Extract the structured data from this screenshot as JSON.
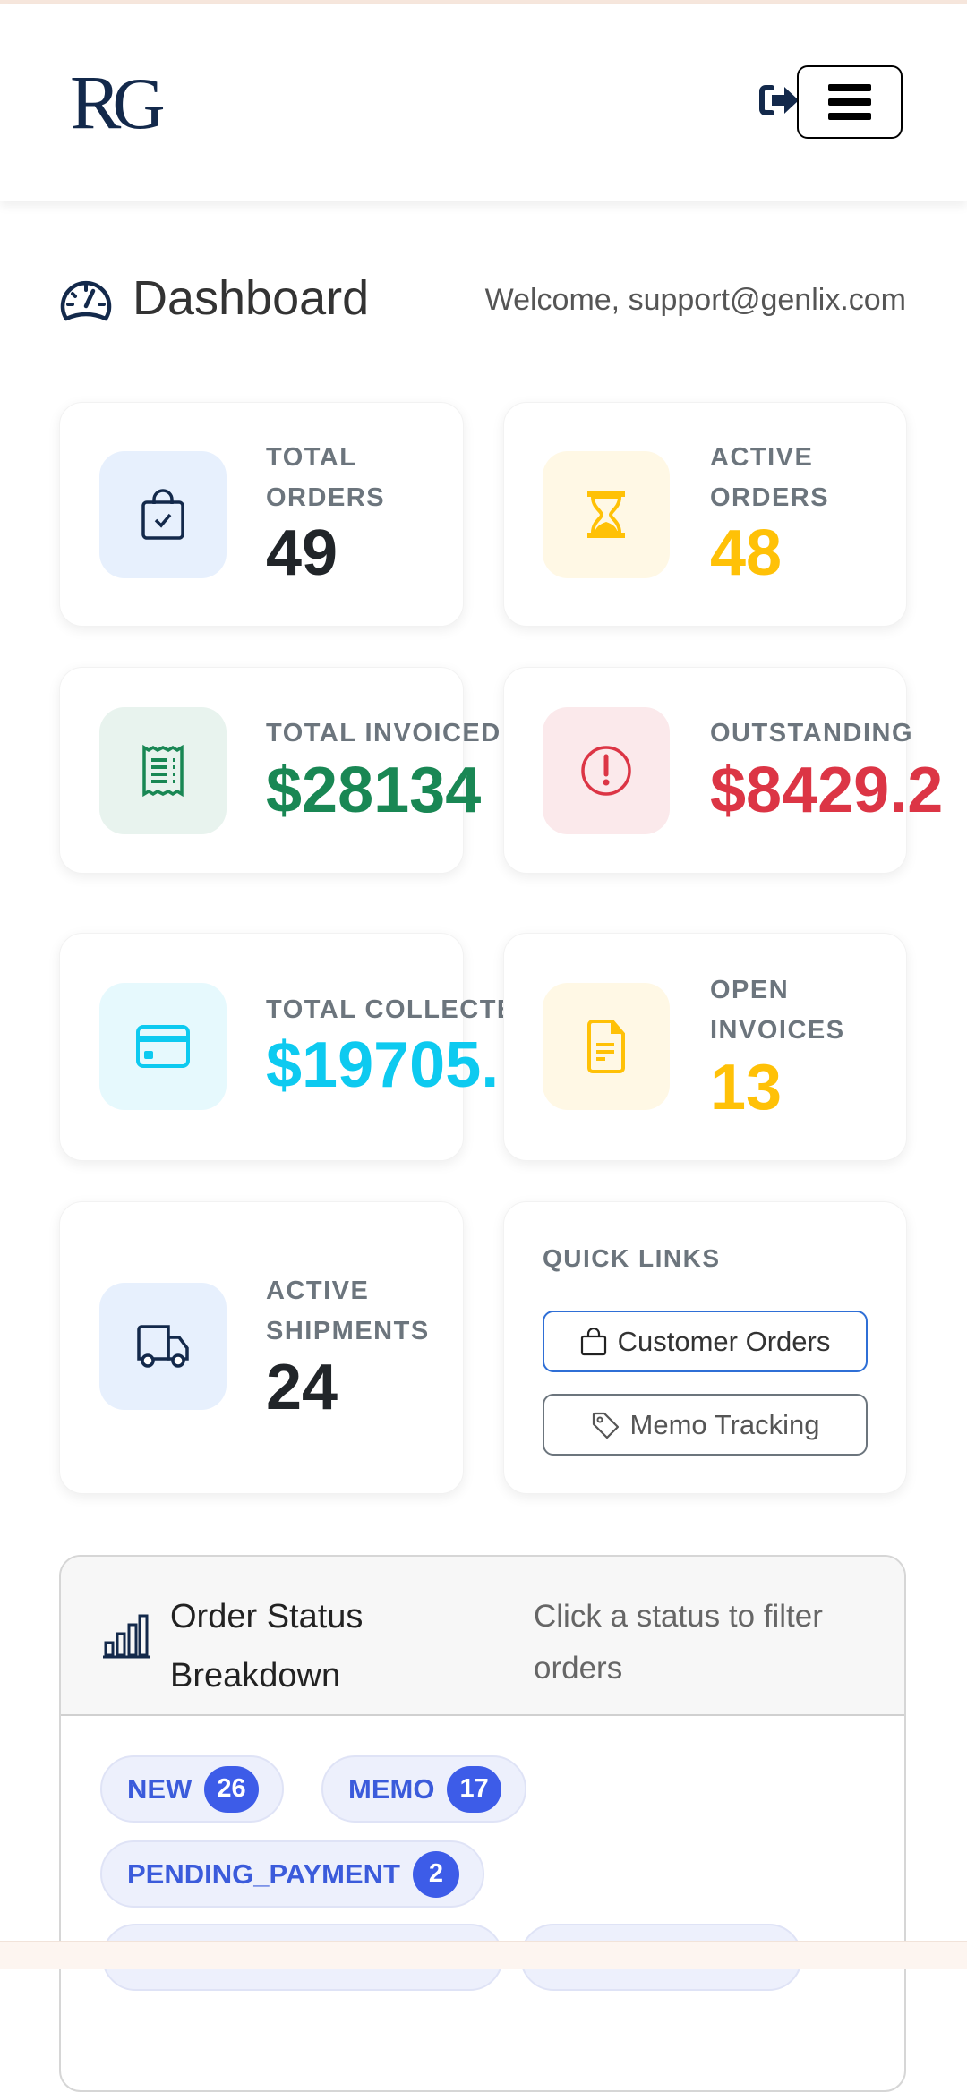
{
  "header": {
    "logo_text": "RG",
    "logout_icon": "sign-out-icon",
    "menu_icon": "hamburger-icon"
  },
  "page": {
    "title": "Dashboard",
    "welcome": "Welcome, support@genlix.com"
  },
  "stats": [
    {
      "label_line1": "TOTAL",
      "label_line2": "ORDERS",
      "value": "49",
      "icon": "bag-check-icon",
      "color": "#212529",
      "bg": "#e7f0fd"
    },
    {
      "label_line1": "ACTIVE",
      "label_line2": "ORDERS",
      "value": "48",
      "icon": "hourglass-icon",
      "color": "#ffc107",
      "bg": "#fff8e5"
    },
    {
      "label_line1": "TOTAL INVOICED",
      "value": "$28134",
      "icon": "receipt-icon",
      "color": "#198754",
      "bg": "#e8f3ee"
    },
    {
      "label_line1": "OUTSTANDING",
      "value": "$8429.2",
      "icon": "exclamation-circle-icon",
      "color": "#dc3545",
      "bg": "#fbe9eb"
    },
    {
      "label_line1": "TOTAL COLLECTED",
      "value": "$19705.",
      "icon": "credit-card-icon",
      "color": "#0dcaf0",
      "bg": "#e6f9fd"
    },
    {
      "label_line1": "OPEN",
      "label_line2": "INVOICES",
      "value": "13",
      "icon": "file-text-icon",
      "color": "#ffc107",
      "bg": "#fff8e5"
    },
    {
      "label_line1": "ACTIVE",
      "label_line2": "SHIPMENTS",
      "value": "24",
      "icon": "truck-icon",
      "color": "#212529",
      "bg": "#e7f0fd"
    }
  ],
  "quick_links": {
    "title": "QUICK LINKS",
    "items": [
      {
        "label": "Customer Orders",
        "icon": "bag-icon"
      },
      {
        "label": "Memo Tracking",
        "icon": "tag-icon"
      }
    ]
  },
  "order_status": {
    "title_line1": "Order Status",
    "title_line2": "Breakdown",
    "hint_line1": "Click a status to filter",
    "hint_line2": "orders",
    "chips": [
      {
        "label": "NEW",
        "count": "26"
      },
      {
        "label": "MEMO",
        "count": "17"
      },
      {
        "label": "PENDING_PAYMENT",
        "count": "2"
      }
    ]
  },
  "colors": {
    "navy": "#13294b",
    "chip_blue": "#3b5bdb",
    "badge_blue": "#3d5ce8"
  }
}
